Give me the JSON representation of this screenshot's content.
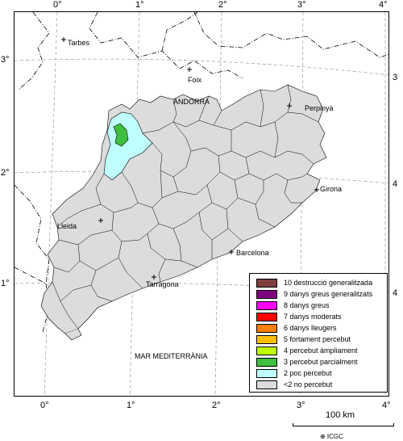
{
  "axes": {
    "top_ticks": [
      "0°",
      "1°",
      "2°",
      "3°",
      "4°"
    ],
    "bottom_ticks": [
      "0°",
      "1°",
      "2°",
      "3°",
      "4°"
    ],
    "left_ticks": [
      "3°",
      "2°",
      "1°"
    ],
    "right_ticks": [
      "3",
      "4",
      "4"
    ]
  },
  "places": {
    "tarbes": "Tarbes",
    "foix": "Foix",
    "andorra": "ANDORRA",
    "perpinya": "Perpinyà",
    "girona": "Girona",
    "lleida": "Lleida",
    "barcelona": "Barcelona",
    "tarragona": "Tarragona",
    "sea": "MAR MEDITERRÀNIA"
  },
  "legend": {
    "items": [
      {
        "label": "10 destrucció generalitzada",
        "color": "#7f3f3f"
      },
      {
        "label": "9 danys greus generalitzats",
        "color": "#7f007f"
      },
      {
        "label": "8 danys greus",
        "color": "#ff00ff"
      },
      {
        "label": "7 danys moderats",
        "color": "#ff0000"
      },
      {
        "label": "6 danys lleugers",
        "color": "#ff7f00"
      },
      {
        "label": "5 fortament percebut",
        "color": "#ffbf00"
      },
      {
        "label": "4 percebut àmpliament",
        "color": "#bfff00"
      },
      {
        "label": "3 percebut parcialment",
        "color": "#3fbf3f"
      },
      {
        "label": "2 poc percebut",
        "color": "#bfffff"
      },
      {
        "label": "<2 no percebut",
        "color": "#dcdcdc"
      }
    ]
  },
  "scale_bar": {
    "label": "100 km"
  },
  "credit": "⊕ ICGC"
}
